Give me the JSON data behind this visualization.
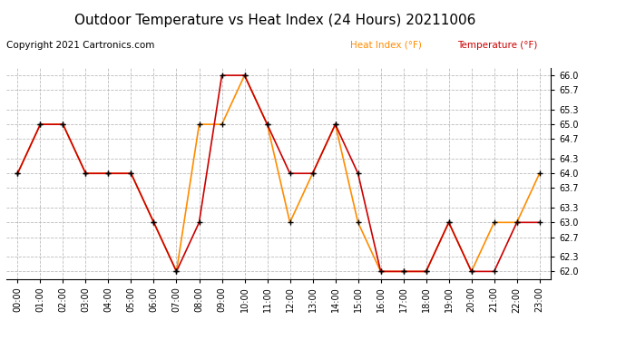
{
  "title": "Outdoor Temperature vs Heat Index (24 Hours) 20211006",
  "copyright_text": "Copyright 2021 Cartronics.com",
  "legend_heat_index": "Heat Index (°F)",
  "legend_temperature": "Temperature (°F)",
  "hours": [
    0,
    1,
    2,
    3,
    4,
    5,
    6,
    7,
    8,
    9,
    10,
    11,
    12,
    13,
    14,
    15,
    16,
    17,
    18,
    19,
    20,
    21,
    22,
    23
  ],
  "temperature": [
    64.0,
    65.0,
    65.0,
    64.0,
    64.0,
    64.0,
    63.0,
    62.0,
    63.0,
    66.0,
    66.0,
    65.0,
    64.0,
    64.0,
    65.0,
    64.0,
    62.0,
    62.0,
    62.0,
    63.0,
    62.0,
    62.0,
    63.0,
    63.0
  ],
  "heat_index": [
    64.0,
    65.0,
    65.0,
    64.0,
    64.0,
    64.0,
    63.0,
    62.0,
    65.0,
    65.0,
    66.0,
    65.0,
    63.0,
    64.0,
    65.0,
    63.0,
    62.0,
    62.0,
    62.0,
    63.0,
    62.0,
    63.0,
    63.0,
    64.0
  ],
  "temp_color": "#cc0000",
  "heat_color": "#ff8c00",
  "marker": "+",
  "marker_color": "#000000",
  "marker_size": 5,
  "marker_linewidth": 1.0,
  "line_width": 1.2,
  "ylim_min": 61.85,
  "ylim_max": 66.15,
  "yticks": [
    62.0,
    62.3,
    62.7,
    63.0,
    63.3,
    63.7,
    64.0,
    64.3,
    64.7,
    65.0,
    65.3,
    65.7,
    66.0
  ],
  "background_color": "#ffffff",
  "grid_color": "#bbbbbb",
  "title_fontsize": 11,
  "legend_fontsize": 7.5,
  "tick_fontsize": 7,
  "copyright_fontsize": 7.5
}
